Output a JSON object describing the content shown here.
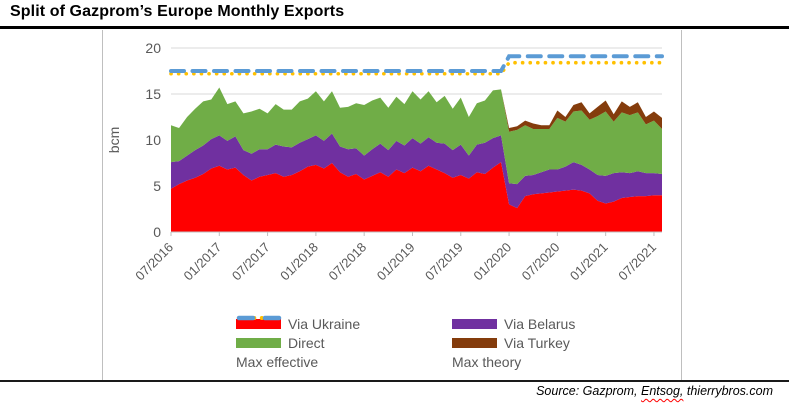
{
  "page": {
    "title": "Split of Gazprom’s Europe Monthly Exports",
    "source_prefix": "Source: Gazprom, ",
    "source_misspelled": "Entsog,",
    "source_suffix": " thierrybros.com"
  },
  "chart_data": {
    "type": "area",
    "stacked": true,
    "ylabel": "bcm",
    "ylim": [
      0,
      20
    ],
    "yticks": [
      0,
      5,
      10,
      15,
      20
    ],
    "grid": true,
    "legend_position": "bottom",
    "x_start": "07/2016",
    "x_end": "08/2021",
    "tick_every": 6,
    "x_tick_labels": [
      "07/2016",
      "01/2017",
      "07/2017",
      "01/2018",
      "07/2018",
      "01/2019",
      "07/2019",
      "01/2020",
      "07/2020",
      "01/2021",
      "07/2021"
    ],
    "colors": {
      "via_ukraine": "#FF0000",
      "via_belarus": "#7030A0",
      "direct": "#70AD47",
      "via_turkey": "#843C0C",
      "max_effective": "#FFC000",
      "max_theory": "#5B9BD5",
      "gridline": "#D9D9D9",
      "axis": "#BFBFBF",
      "axis_text": "#595959"
    },
    "series": [
      {
        "name": "Via Ukraine",
        "kind": "area",
        "color": "#FF0000",
        "values": [
          4.7,
          5.2,
          5.6,
          5.9,
          6.3,
          6.9,
          7.2,
          6.8,
          7.0,
          6.2,
          5.6,
          6.0,
          6.2,
          6.4,
          6.0,
          6.2,
          6.6,
          7.1,
          7.3,
          6.9,
          7.5,
          6.5,
          6.0,
          6.3,
          5.7,
          6.1,
          6.5,
          6.0,
          6.8,
          6.4,
          7.0,
          6.6,
          7.2,
          6.8,
          6.4,
          5.9,
          6.2,
          5.8,
          6.5,
          6.3,
          7.0,
          7.6,
          3.0,
          2.6,
          3.9,
          4.1,
          4.2,
          4.3,
          4.4,
          4.5,
          4.6,
          4.5,
          4.2,
          3.4,
          3.1,
          3.3,
          3.7,
          3.8,
          3.9,
          3.9,
          4.0,
          4.0
        ]
      },
      {
        "name": "Via Belarus",
        "kind": "area",
        "color": "#7030A0",
        "values": [
          2.9,
          2.5,
          2.7,
          3.0,
          3.1,
          3.2,
          3.3,
          3.1,
          3.4,
          2.7,
          2.9,
          3.0,
          2.8,
          3.1,
          3.3,
          3.0,
          3.1,
          3.0,
          3.2,
          3.0,
          3.2,
          2.8,
          3.0,
          2.8,
          2.6,
          2.9,
          3.1,
          2.9,
          3.1,
          3.0,
          3.2,
          3.0,
          3.1,
          2.9,
          3.2,
          3.0,
          3.3,
          2.5,
          3.0,
          3.4,
          3.2,
          2.9,
          2.3,
          2.6,
          2.2,
          2.1,
          2.3,
          2.5,
          2.4,
          2.6,
          3.0,
          2.8,
          2.6,
          2.8,
          3.0,
          3.1,
          2.8,
          2.6,
          2.7,
          2.5,
          2.4,
          2.3
        ]
      },
      {
        "name": "Direct",
        "kind": "area",
        "color": "#70AD47",
        "values": [
          4.0,
          3.6,
          4.2,
          4.5,
          4.8,
          4.3,
          5.2,
          4.0,
          3.8,
          4.0,
          4.6,
          4.4,
          3.9,
          4.4,
          4.0,
          4.1,
          4.5,
          4.4,
          4.8,
          4.3,
          4.6,
          4.2,
          4.6,
          4.9,
          5.5,
          5.3,
          5.0,
          4.6,
          4.8,
          4.5,
          5.1,
          4.8,
          5.0,
          4.4,
          5.2,
          4.5,
          5.1,
          4.2,
          4.5,
          4.6,
          5.2,
          5.0,
          5.6,
          5.9,
          5.5,
          5.0,
          4.7,
          4.4,
          5.6,
          4.9,
          5.5,
          5.9,
          5.4,
          6.4,
          7.0,
          5.6,
          6.5,
          6.3,
          6.4,
          5.3,
          5.7,
          4.9
        ]
      },
      {
        "name": "Via Turkey",
        "kind": "area",
        "color": "#843C0C",
        "values": [
          0,
          0,
          0,
          0,
          0,
          0,
          0,
          0,
          0,
          0,
          0,
          0,
          0,
          0,
          0,
          0,
          0,
          0,
          0,
          0,
          0,
          0,
          0,
          0,
          0,
          0,
          0,
          0,
          0,
          0,
          0,
          0,
          0,
          0,
          0,
          0,
          0,
          0,
          0,
          0,
          0,
          0,
          0.4,
          0.4,
          0.5,
          0.6,
          0.4,
          0.4,
          0.8,
          0.5,
          0.7,
          0.9,
          0.7,
          1.0,
          1.2,
          0.8,
          1.2,
          0.9,
          1.1,
          0.8,
          1.0,
          1.2
        ]
      },
      {
        "name": "Max effective",
        "kind": "dotted-line",
        "color": "#FFC000",
        "values": [
          17.2,
          17.2,
          17.2,
          17.2,
          17.2,
          17.2,
          17.2,
          17.2,
          17.2,
          17.2,
          17.2,
          17.2,
          17.2,
          17.2,
          17.2,
          17.2,
          17.2,
          17.2,
          17.2,
          17.2,
          17.2,
          17.2,
          17.2,
          17.2,
          17.2,
          17.2,
          17.2,
          17.2,
          17.2,
          17.2,
          17.2,
          17.2,
          17.2,
          17.2,
          17.2,
          17.2,
          17.2,
          17.2,
          17.2,
          17.2,
          17.2,
          17.2,
          18.4,
          18.4,
          18.4,
          18.4,
          18.4,
          18.4,
          18.4,
          18.4,
          18.4,
          18.4,
          18.4,
          18.4,
          18.4,
          18.4,
          18.4,
          18.4,
          18.4,
          18.4,
          18.4,
          18.4
        ]
      },
      {
        "name": "Max theory",
        "kind": "dashed-line",
        "color": "#5B9BD5",
        "values": [
          17.5,
          17.5,
          17.5,
          17.5,
          17.5,
          17.5,
          17.5,
          17.5,
          17.5,
          17.5,
          17.5,
          17.5,
          17.5,
          17.5,
          17.5,
          17.5,
          17.5,
          17.5,
          17.5,
          17.5,
          17.5,
          17.5,
          17.5,
          17.5,
          17.5,
          17.5,
          17.5,
          17.5,
          17.5,
          17.5,
          17.5,
          17.5,
          17.5,
          17.5,
          17.5,
          17.5,
          17.5,
          17.5,
          17.5,
          17.5,
          17.5,
          17.5,
          19.1,
          19.1,
          19.1,
          19.1,
          19.1,
          19.1,
          19.1,
          19.1,
          19.1,
          19.1,
          19.1,
          19.1,
          19.1,
          19.1,
          19.1,
          19.1,
          19.1,
          19.1,
          19.1,
          19.1
        ]
      }
    ],
    "legend": [
      {
        "label": "Via Ukraine",
        "color": "#FF0000",
        "swatch": "rect"
      },
      {
        "label": "Via Belarus",
        "color": "#7030A0",
        "swatch": "rect"
      },
      {
        "label": "Direct",
        "color": "#70AD47",
        "swatch": "rect"
      },
      {
        "label": "Via Turkey",
        "color": "#843C0C",
        "swatch": "rect"
      },
      {
        "label": "Max effective",
        "color": "#FFC000",
        "swatch": "dots"
      },
      {
        "label": "Max theory",
        "color": "#5B9BD5",
        "swatch": "dashes"
      }
    ]
  }
}
